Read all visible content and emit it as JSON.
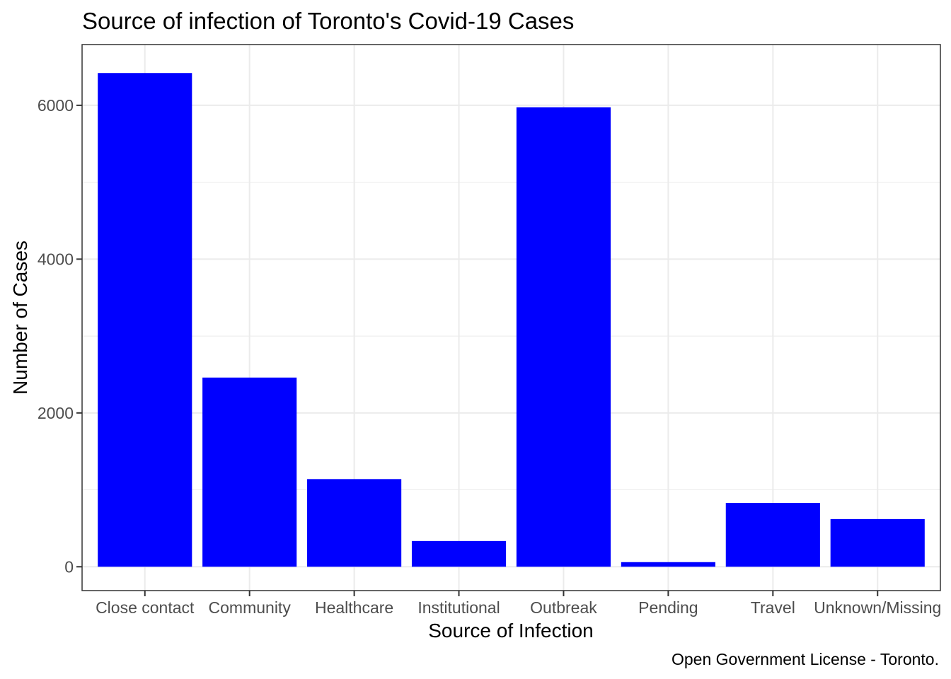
{
  "chart_data": {
    "type": "bar",
    "title": "Source of infection of Toronto's Covid-19 Cases",
    "xlabel": "Source of Infection",
    "ylabel": "Number of Cases",
    "caption": "Open Government License - Toronto.",
    "categories": [
      "Close contact",
      "Community",
      "Healthcare",
      "Institutional",
      "Outbreak",
      "Pending",
      "Travel",
      "Unknown/Missing"
    ],
    "values": [
      6420,
      2460,
      1140,
      335,
      5975,
      60,
      830,
      620
    ],
    "ylim": [
      -310,
      6790
    ],
    "yticks": [
      0,
      2000,
      4000,
      6000
    ],
    "ytick_labels": [
      "0",
      "2000",
      "4000",
      "6000"
    ],
    "grid": true,
    "legend": "none",
    "colors": {
      "bar": "#0000ff",
      "grid": "#ebebeb",
      "panel_border": "#333333",
      "tick_text": "#4d4d4d"
    }
  }
}
